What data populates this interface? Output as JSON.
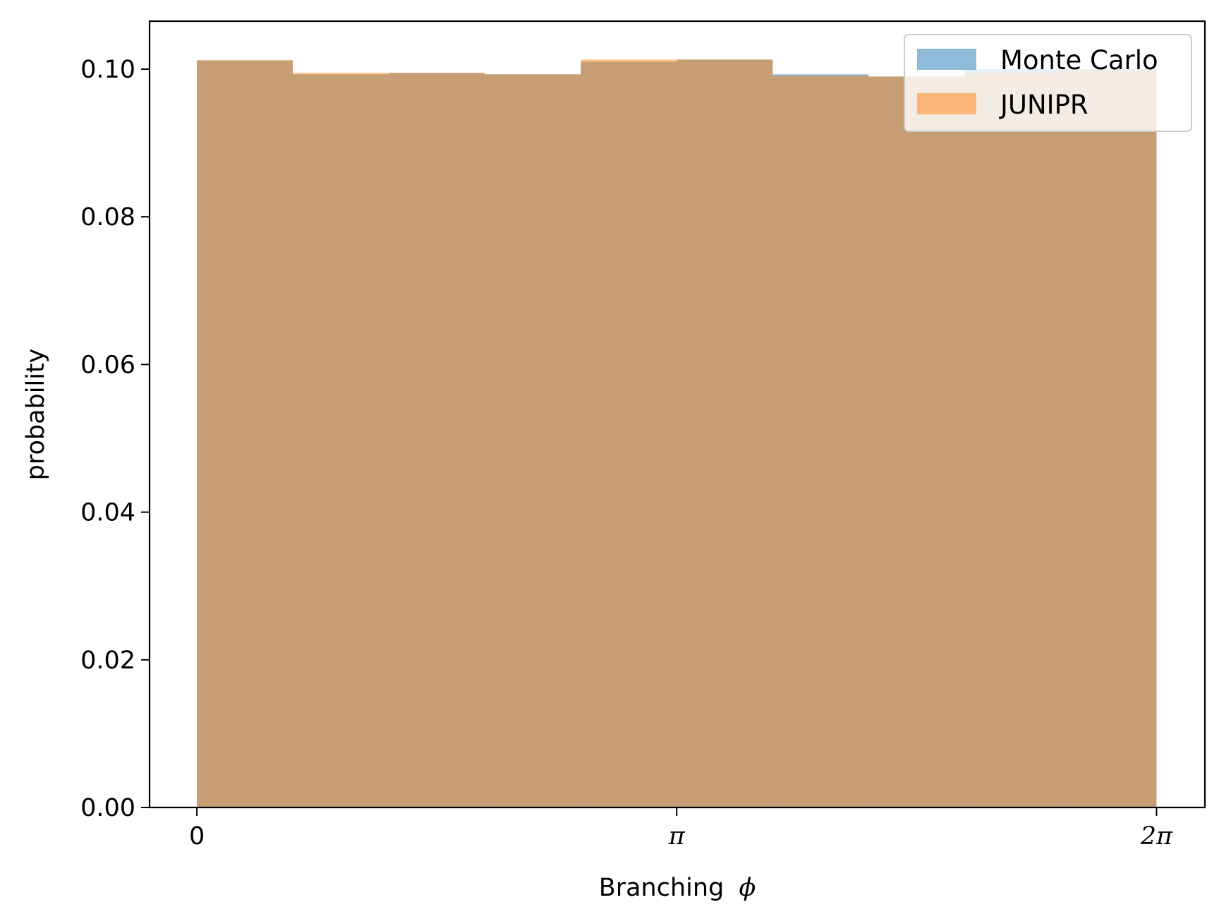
{
  "chart_data": {
    "type": "bar",
    "subtype": "overlapping-histogram",
    "title": "",
    "xlabel": "Branching",
    "xlabel_symbol": "ϕ",
    "ylabel": "probability",
    "xlim": [
      -0.31,
      6.6
    ],
    "ylim": [
      0.0,
      0.1065
    ],
    "bin_edges": [
      0,
      0.6283,
      1.2566,
      1.885,
      2.5133,
      3.1416,
      3.7699,
      4.3982,
      5.0265,
      5.6549,
      6.2832
    ],
    "x_ticks": [
      {
        "value": 0,
        "label": "0"
      },
      {
        "value": 3.1416,
        "label": "π"
      },
      {
        "value": 6.2832,
        "label": "2π"
      }
    ],
    "y_ticks": [
      {
        "value": 0.0,
        "label": "0.00"
      },
      {
        "value": 0.02,
        "label": "0.02"
      },
      {
        "value": 0.04,
        "label": "0.04"
      },
      {
        "value": 0.06,
        "label": "0.06"
      },
      {
        "value": 0.08,
        "label": "0.08"
      },
      {
        "value": 0.1,
        "label": "0.10"
      }
    ],
    "series": [
      {
        "name": "Monte Carlo",
        "color": "#1f77b4",
        "alpha": 0.5,
        "values": [
          0.1012,
          0.0993,
          0.0995,
          0.0993,
          0.101,
          0.1013,
          0.0993,
          0.099,
          0.1,
          0.1
        ]
      },
      {
        "name": "JUNIPR",
        "color": "#ff7f0e",
        "alpha": 0.5,
        "values": [
          0.1012,
          0.0995,
          0.0995,
          0.0993,
          0.1013,
          0.1013,
          0.0991,
          0.099,
          0.0995,
          0.0999
        ]
      }
    ],
    "grid": false,
    "legend_position": "top-right"
  }
}
